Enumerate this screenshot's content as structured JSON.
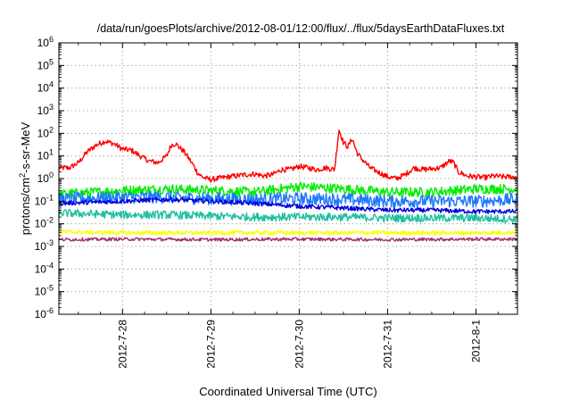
{
  "chart_data": {
    "type": "line",
    "title": "/data/run/goesPlots/archive/2012-08-01/12:00/flux/../flux/5daysEarthDataFluxes.txt",
    "xlabel": "Coordinated Universal Time (UTC)",
    "ylabel_parts": [
      "protons/cm",
      "2",
      "-s-sr-MeV"
    ],
    "yscale": "log",
    "ylim": [
      1e-06,
      1000000.0
    ],
    "xlim": [
      -0.72,
      4.47
    ],
    "x_unit_note": "days",
    "grid": true,
    "y_ticks": [
      {
        "base": "10",
        "exp": "-6",
        "value": 1e-06
      },
      {
        "base": "10",
        "exp": "-5",
        "value": 1e-05
      },
      {
        "base": "10",
        "exp": "-4",
        "value": 0.0001
      },
      {
        "base": "10",
        "exp": "-3",
        "value": 0.001
      },
      {
        "base": "10",
        "exp": "-2",
        "value": 0.01
      },
      {
        "base": "10",
        "exp": "-1",
        "value": 0.1
      },
      {
        "base": "10",
        "exp": "0",
        "value": 1.0
      },
      {
        "base": "10",
        "exp": "1",
        "value": 10.0
      },
      {
        "base": "10",
        "exp": "2",
        "value": 100.0
      },
      {
        "base": "10",
        "exp": "3",
        "value": 1000.0
      },
      {
        "base": "10",
        "exp": "4",
        "value": 10000.0
      },
      {
        "base": "10",
        "exp": "5",
        "value": 100000.0
      },
      {
        "base": "10",
        "exp": "6",
        "value": 1000000.0
      }
    ],
    "x_ticks": [
      {
        "label": "2012-7-28",
        "value": 0
      },
      {
        "label": "2012-7-29",
        "value": 1
      },
      {
        "label": "2012-7-30",
        "value": 2
      },
      {
        "label": "2012-7-31",
        "value": 3
      },
      {
        "label": "2012-8-1",
        "value": 4
      }
    ],
    "series": [
      {
        "color": "#ff0000",
        "noise": 0.12,
        "x": [
          -0.72,
          -0.6,
          -0.5,
          -0.4,
          -0.3,
          -0.2,
          -0.1,
          0.0,
          0.1,
          0.2,
          0.3,
          0.4,
          0.5,
          0.55,
          0.6,
          0.7,
          0.8,
          0.85,
          0.9,
          0.95,
          1.0,
          1.2,
          1.4,
          1.5,
          1.6,
          1.7,
          1.8,
          1.9,
          2.0,
          2.2,
          2.3,
          2.4,
          2.45,
          2.5,
          2.55,
          2.6,
          2.65,
          2.7,
          2.75,
          2.8,
          3.0,
          3.1,
          3.2,
          3.3,
          3.4,
          3.6,
          3.7,
          3.75,
          3.8,
          3.9,
          4.0,
          4.1,
          4.2,
          4.3,
          4.47
        ],
        "y": [
          3,
          3,
          5,
          15,
          30,
          45,
          35,
          20,
          18,
          10,
          6,
          5,
          10,
          30,
          35,
          15,
          4,
          1.8,
          1.2,
          1.0,
          0.9,
          1.2,
          1.5,
          1.6,
          1.3,
          1.5,
          2.5,
          2.5,
          3.5,
          2.5,
          3.0,
          2.5,
          150,
          40,
          25,
          60,
          15,
          8,
          5,
          3,
          1.2,
          1.0,
          1.5,
          3,
          2.5,
          3,
          6,
          5,
          2,
          1.3,
          1.2,
          1.1,
          1.3,
          1.2,
          1.2
        ]
      },
      {
        "color": "#00ee00",
        "noise": 0.22,
        "x": [
          -0.72,
          0.0,
          0.5,
          1.0,
          1.5,
          2.0,
          2.5,
          3.0,
          3.5,
          4.0,
          4.47
        ],
        "y": [
          0.2,
          0.3,
          0.35,
          0.3,
          0.25,
          0.45,
          0.35,
          0.25,
          0.25,
          0.35,
          0.35
        ]
      },
      {
        "color": "#1e78ff",
        "noise": 0.28,
        "x": [
          -0.72,
          0.0,
          0.5,
          1.0,
          1.5,
          2.0,
          2.5,
          3.0,
          3.5,
          4.0,
          4.47
        ],
        "y": [
          0.12,
          0.15,
          0.15,
          0.13,
          0.12,
          0.13,
          0.12,
          0.1,
          0.1,
          0.1,
          0.12
        ]
      },
      {
        "color": "#0000dd",
        "noise": 0.1,
        "x": [
          -0.72,
          0.0,
          0.5,
          1.0,
          1.5,
          2.0,
          2.5,
          3.0,
          3.5,
          4.0,
          4.47
        ],
        "y": [
          0.08,
          0.1,
          0.12,
          0.1,
          0.08,
          0.06,
          0.05,
          0.04,
          0.04,
          0.035,
          0.035
        ]
      },
      {
        "color": "#20c0a0",
        "noise": 0.18,
        "x": [
          -0.72,
          0.0,
          0.5,
          1.0,
          1.5,
          2.0,
          2.5,
          3.0,
          3.5,
          4.0,
          4.47
        ],
        "y": [
          0.03,
          0.025,
          0.025,
          0.022,
          0.02,
          0.02,
          0.02,
          0.018,
          0.018,
          0.018,
          0.016
        ]
      },
      {
        "color": "#ffff00",
        "noise": 0.1,
        "x": [
          -0.72,
          0.0,
          1.0,
          2.0,
          3.0,
          4.0,
          4.47
        ],
        "y": [
          0.0045,
          0.004,
          0.004,
          0.004,
          0.004,
          0.004,
          0.0042
        ]
      },
      {
        "color": "#a0306a",
        "noise": 0.07,
        "x": [
          -0.72,
          0.0,
          1.0,
          2.0,
          3.0,
          4.0,
          4.47
        ],
        "y": [
          0.002,
          0.0021,
          0.002,
          0.0021,
          0.002,
          0.0021,
          0.0021
        ]
      }
    ]
  }
}
